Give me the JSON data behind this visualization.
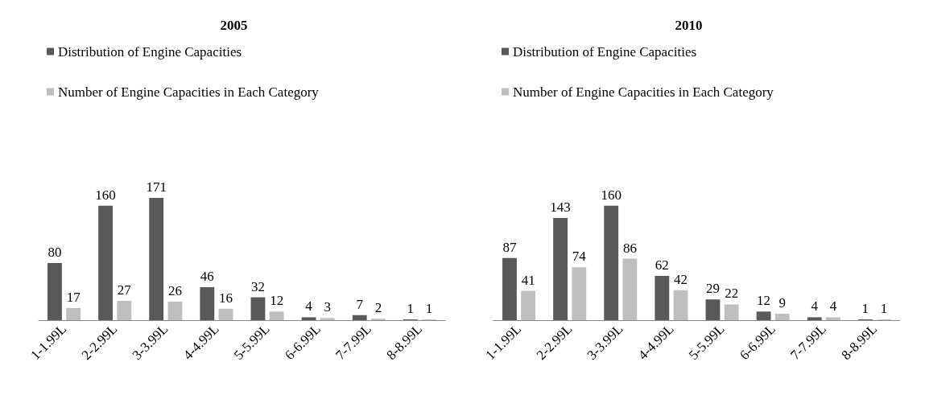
{
  "chart_data": [
    {
      "type": "bar",
      "title": "2005",
      "categories": [
        "1-1.99L",
        "2-2.99L",
        "3-3.99L",
        "4-4.99L",
        "5-5.99L",
        "6-6.99L",
        "7-7.99L",
        "8-8.99L"
      ],
      "series": [
        {
          "name": "Distribution of Engine Capacities",
          "color": "#595959",
          "values": [
            80,
            160,
            171,
            46,
            32,
            4,
            7,
            1
          ]
        },
        {
          "name": "Number of Engine Capacities in Each Category",
          "color": "#bfbfbf",
          "values": [
            17,
            27,
            26,
            16,
            12,
            3,
            2,
            1
          ]
        }
      ],
      "data_labels": true,
      "legend": "top left",
      "grid": false
    },
    {
      "type": "bar",
      "title": "2010",
      "categories": [
        "1-1.99L",
        "2-2.99L",
        "3-3.99L",
        "4-4.99L",
        "5-5.99L",
        "6-6.99L",
        "7-7.99L",
        "8-8.99L"
      ],
      "series": [
        {
          "name": "Distribution of Engine Capacities",
          "color": "#595959",
          "values": [
            87,
            143,
            160,
            62,
            29,
            12,
            4,
            1
          ]
        },
        {
          "name": "Number of Engine Capacities in Each Category",
          "color": "#bfbfbf",
          "values": [
            41,
            74,
            86,
            42,
            22,
            9,
            4,
            1
          ]
        }
      ],
      "data_labels": true,
      "legend": "top left",
      "grid": false
    }
  ]
}
